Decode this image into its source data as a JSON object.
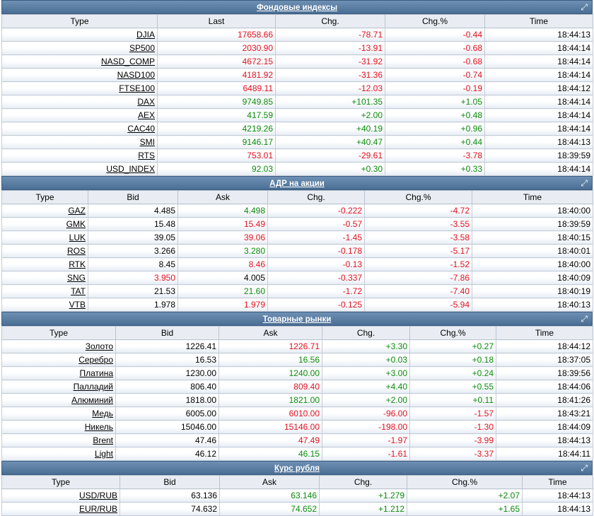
{
  "sections": [
    {
      "title": "Фондовые индексы",
      "columns": [
        "Type",
        "Last",
        "Chg.",
        "Chg.%",
        "Time"
      ],
      "rows": [
        {
          "cells": [
            {
              "v": "DJIA",
              "c": "nt"
            },
            {
              "v": "17658.66",
              "c": "dn"
            },
            {
              "v": "-78.71",
              "c": "dn"
            },
            {
              "v": "-0.44",
              "c": "dn"
            },
            {
              "v": "18:44:13",
              "c": "nt"
            }
          ]
        },
        {
          "cells": [
            {
              "v": "SP500",
              "c": "nt"
            },
            {
              "v": "2030.90",
              "c": "dn"
            },
            {
              "v": "-13.91",
              "c": "dn"
            },
            {
              "v": "-0.68",
              "c": "dn"
            },
            {
              "v": "18:44:14",
              "c": "nt"
            }
          ]
        },
        {
          "cells": [
            {
              "v": "NASD_COMP",
              "c": "nt"
            },
            {
              "v": "4672.15",
              "c": "dn"
            },
            {
              "v": "-31.92",
              "c": "dn"
            },
            {
              "v": "-0.68",
              "c": "dn"
            },
            {
              "v": "18:44:14",
              "c": "nt"
            }
          ]
        },
        {
          "cells": [
            {
              "v": "NASD100",
              "c": "nt"
            },
            {
              "v": "4181.92",
              "c": "dn"
            },
            {
              "v": "-31.36",
              "c": "dn"
            },
            {
              "v": "-0.74",
              "c": "dn"
            },
            {
              "v": "18:44:14",
              "c": "nt"
            }
          ]
        },
        {
          "cells": [
            {
              "v": "FTSE100",
              "c": "nt"
            },
            {
              "v": "6489.11",
              "c": "dn"
            },
            {
              "v": "-12.03",
              "c": "dn"
            },
            {
              "v": "-0.19",
              "c": "dn"
            },
            {
              "v": "18:44:12",
              "c": "nt"
            }
          ]
        },
        {
          "cells": [
            {
              "v": "DAX",
              "c": "nt"
            },
            {
              "v": "9749.85",
              "c": "up"
            },
            {
              "v": "+101.35",
              "c": "up"
            },
            {
              "v": "+1.05",
              "c": "up"
            },
            {
              "v": "18:44:14",
              "c": "nt"
            }
          ]
        },
        {
          "cells": [
            {
              "v": "AEX",
              "c": "nt"
            },
            {
              "v": "417.59",
              "c": "up"
            },
            {
              "v": "+2.00",
              "c": "up"
            },
            {
              "v": "+0.48",
              "c": "up"
            },
            {
              "v": "18:44:14",
              "c": "nt"
            }
          ]
        },
        {
          "cells": [
            {
              "v": "CAC40",
              "c": "nt"
            },
            {
              "v": "4219.26",
              "c": "up"
            },
            {
              "v": "+40.19",
              "c": "up"
            },
            {
              "v": "+0.96",
              "c": "up"
            },
            {
              "v": "18:44:14",
              "c": "nt"
            }
          ]
        },
        {
          "cells": [
            {
              "v": "SMI",
              "c": "nt"
            },
            {
              "v": "9146.17",
              "c": "up"
            },
            {
              "v": "+40.47",
              "c": "up"
            },
            {
              "v": "+0.44",
              "c": "up"
            },
            {
              "v": "18:44:13",
              "c": "nt"
            }
          ]
        },
        {
          "cells": [
            {
              "v": "RTS",
              "c": "nt"
            },
            {
              "v": "753.01",
              "c": "dn"
            },
            {
              "v": "-29.61",
              "c": "dn"
            },
            {
              "v": "-3.78",
              "c": "dn"
            },
            {
              "v": "18:39:59",
              "c": "nt"
            }
          ]
        },
        {
          "cells": [
            {
              "v": "USD_INDEX",
              "c": "nt"
            },
            {
              "v": "92.03",
              "c": "up"
            },
            {
              "v": "+0.30",
              "c": "up"
            },
            {
              "v": "+0.33",
              "c": "up"
            },
            {
              "v": "18:44:14",
              "c": "nt"
            }
          ]
        }
      ]
    },
    {
      "title": "АДР на акции",
      "columns": [
        "Type",
        "Bid",
        "Ask",
        "Chg.",
        "Chg.%",
        "Time"
      ],
      "rows": [
        {
          "cells": [
            {
              "v": "GAZ",
              "c": "nt"
            },
            {
              "v": "4.485",
              "c": "nt"
            },
            {
              "v": "4.498",
              "c": "up"
            },
            {
              "v": "-0.222",
              "c": "dn"
            },
            {
              "v": "-4.72",
              "c": "dn"
            },
            {
              "v": "18:40:00",
              "c": "nt"
            }
          ]
        },
        {
          "cells": [
            {
              "v": "GMK",
              "c": "nt"
            },
            {
              "v": "15.48",
              "c": "nt"
            },
            {
              "v": "15.49",
              "c": "dn"
            },
            {
              "v": "-0.57",
              "c": "dn"
            },
            {
              "v": "-3.55",
              "c": "dn"
            },
            {
              "v": "18:39:59",
              "c": "nt"
            }
          ]
        },
        {
          "cells": [
            {
              "v": "LUK",
              "c": "nt"
            },
            {
              "v": "39.05",
              "c": "nt"
            },
            {
              "v": "39.06",
              "c": "dn"
            },
            {
              "v": "-1.45",
              "c": "dn"
            },
            {
              "v": "-3.58",
              "c": "dn"
            },
            {
              "v": "18:40:15",
              "c": "nt"
            }
          ]
        },
        {
          "cells": [
            {
              "v": "ROS",
              "c": "nt"
            },
            {
              "v": "3.266",
              "c": "nt"
            },
            {
              "v": "3.280",
              "c": "up"
            },
            {
              "v": "-0.178",
              "c": "dn"
            },
            {
              "v": "-5.17",
              "c": "dn"
            },
            {
              "v": "18:40:01",
              "c": "nt"
            }
          ]
        },
        {
          "cells": [
            {
              "v": "RTK",
              "c": "nt"
            },
            {
              "v": "8.45",
              "c": "nt"
            },
            {
              "v": "8.46",
              "c": "dn"
            },
            {
              "v": "-0.13",
              "c": "dn"
            },
            {
              "v": "-1.52",
              "c": "dn"
            },
            {
              "v": "18:40:00",
              "c": "nt"
            }
          ]
        },
        {
          "cells": [
            {
              "v": "SNG",
              "c": "nt"
            },
            {
              "v": "3.950",
              "c": "dn"
            },
            {
              "v": "4.005",
              "c": "nt"
            },
            {
              "v": "-0.337",
              "c": "dn"
            },
            {
              "v": "-7.86",
              "c": "dn"
            },
            {
              "v": "18:40:09",
              "c": "nt"
            }
          ]
        },
        {
          "cells": [
            {
              "v": "TAT",
              "c": "nt"
            },
            {
              "v": "21.53",
              "c": "nt"
            },
            {
              "v": "21.60",
              "c": "up"
            },
            {
              "v": "-1.72",
              "c": "dn"
            },
            {
              "v": "-7.40",
              "c": "dn"
            },
            {
              "v": "18:40:19",
              "c": "nt"
            }
          ]
        },
        {
          "cells": [
            {
              "v": "VTB",
              "c": "nt"
            },
            {
              "v": "1.978",
              "c": "nt"
            },
            {
              "v": "1.979",
              "c": "dn"
            },
            {
              "v": "-0.125",
              "c": "dn"
            },
            {
              "v": "-5.94",
              "c": "dn"
            },
            {
              "v": "18:40:13",
              "c": "nt"
            }
          ]
        }
      ]
    },
    {
      "title": "Товарные рынки",
      "columns": [
        "Type",
        "Bid",
        "Ask",
        "Chg.",
        "Chg.%",
        "Time"
      ],
      "rows": [
        {
          "cells": [
            {
              "v": "Золото",
              "c": "nt"
            },
            {
              "v": "1226.41",
              "c": "nt"
            },
            {
              "v": "1226.71",
              "c": "dn"
            },
            {
              "v": "+3.30",
              "c": "up"
            },
            {
              "v": "+0.27",
              "c": "up"
            },
            {
              "v": "18:44:12",
              "c": "nt"
            }
          ]
        },
        {
          "cells": [
            {
              "v": "Серебро",
              "c": "nt"
            },
            {
              "v": "16.53",
              "c": "nt"
            },
            {
              "v": "16.56",
              "c": "up"
            },
            {
              "v": "+0.03",
              "c": "up"
            },
            {
              "v": "+0.18",
              "c": "up"
            },
            {
              "v": "18:37:05",
              "c": "nt"
            }
          ]
        },
        {
          "cells": [
            {
              "v": "Платина",
              "c": "nt"
            },
            {
              "v": "1230.00",
              "c": "nt"
            },
            {
              "v": "1240.00",
              "c": "up"
            },
            {
              "v": "+3.00",
              "c": "up"
            },
            {
              "v": "+0.24",
              "c": "up"
            },
            {
              "v": "18:39:56",
              "c": "nt"
            }
          ]
        },
        {
          "cells": [
            {
              "v": "Палладий",
              "c": "nt"
            },
            {
              "v": "806.40",
              "c": "nt"
            },
            {
              "v": "809.40",
              "c": "dn"
            },
            {
              "v": "+4.40",
              "c": "up"
            },
            {
              "v": "+0.55",
              "c": "up"
            },
            {
              "v": "18:44:06",
              "c": "nt"
            }
          ]
        },
        {
          "cells": [
            {
              "v": "Алюминий",
              "c": "nt"
            },
            {
              "v": "1818.00",
              "c": "nt"
            },
            {
              "v": "1821.00",
              "c": "up"
            },
            {
              "v": "+2.00",
              "c": "up"
            },
            {
              "v": "+0.11",
              "c": "up"
            },
            {
              "v": "18:41:26",
              "c": "nt"
            }
          ]
        },
        {
          "cells": [
            {
              "v": "Медь",
              "c": "nt"
            },
            {
              "v": "6005.00",
              "c": "nt"
            },
            {
              "v": "6010.00",
              "c": "dn"
            },
            {
              "v": "-96.00",
              "c": "dn"
            },
            {
              "v": "-1.57",
              "c": "dn"
            },
            {
              "v": "18:43:21",
              "c": "nt"
            }
          ]
        },
        {
          "cells": [
            {
              "v": "Никель",
              "c": "nt"
            },
            {
              "v": "15046.00",
              "c": "nt"
            },
            {
              "v": "15146.00",
              "c": "dn"
            },
            {
              "v": "-198.00",
              "c": "dn"
            },
            {
              "v": "-1.30",
              "c": "dn"
            },
            {
              "v": "18:44:09",
              "c": "nt"
            }
          ]
        },
        {
          "cells": [
            {
              "v": "Brent",
              "c": "nt"
            },
            {
              "v": "47.46",
              "c": "nt"
            },
            {
              "v": "47.49",
              "c": "dn"
            },
            {
              "v": "-1.97",
              "c": "dn"
            },
            {
              "v": "-3.99",
              "c": "dn"
            },
            {
              "v": "18:44:13",
              "c": "nt"
            }
          ]
        },
        {
          "cells": [
            {
              "v": "Light",
              "c": "nt"
            },
            {
              "v": "46.12",
              "c": "nt"
            },
            {
              "v": "46.15",
              "c": "up"
            },
            {
              "v": "-1.61",
              "c": "dn"
            },
            {
              "v": "-3.37",
              "c": "dn"
            },
            {
              "v": "18:44:11",
              "c": "nt"
            }
          ]
        }
      ]
    },
    {
      "title": "Курс рубля",
      "columns": [
        "Type",
        "Bid",
        "Ask",
        "Chg.",
        "Chg.%",
        "Time"
      ],
      "rows": [
        {
          "cells": [
            {
              "v": "USD/RUB",
              "c": "nt"
            },
            {
              "v": "63.136",
              "c": "nt"
            },
            {
              "v": "63.146",
              "c": "up"
            },
            {
              "v": "+1.279",
              "c": "up"
            },
            {
              "v": "+2.07",
              "c": "up"
            },
            {
              "v": "18:44:13",
              "c": "nt"
            }
          ]
        },
        {
          "cells": [
            {
              "v": "EUR/RUB",
              "c": "nt"
            },
            {
              "v": "74.632",
              "c": "nt"
            },
            {
              "v": "74.652",
              "c": "up"
            },
            {
              "v": "+1.212",
              "c": "up"
            },
            {
              "v": "+1.65",
              "c": "up"
            },
            {
              "v": "18:44:13",
              "c": "nt"
            }
          ]
        }
      ]
    }
  ],
  "colors": {
    "up": "#0b8a0b",
    "down": "#e0101f",
    "header": "#4a6d93"
  },
  "icons": {
    "expand": "expand-icon"
  }
}
